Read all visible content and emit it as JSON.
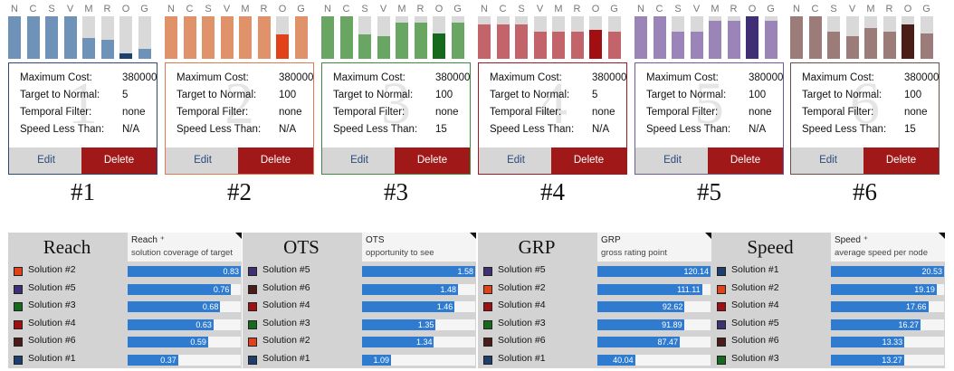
{
  "dimension_letters": [
    "N",
    "C",
    "S",
    "V",
    "M",
    "R",
    "O",
    "G"
  ],
  "field_labels": {
    "max_cost": "Maximum Cost:",
    "target_normal": "Target to Normal:",
    "temporal": "Temporal Filter:",
    "speed": "Speed Less Than:"
  },
  "buttons": {
    "edit": "Edit",
    "delete": "Delete"
  },
  "solutions": [
    {
      "id": "1",
      "label": "#1",
      "max_cost": "380000",
      "target_normal": "5",
      "temporal": "none",
      "speed": "N/A",
      "color": "#6f93b8",
      "dark": "#1d3f6d",
      "border": "#2b4a7a",
      "levels": [
        1,
        1,
        1,
        1,
        0.5,
        0.45,
        0.13,
        0.23
      ],
      "highlight": 6
    },
    {
      "id": "2",
      "label": "#2",
      "max_cost": "380000",
      "target_normal": "100",
      "temporal": "none",
      "speed": "N/A",
      "color": "#e0926b",
      "dark": "#e2421a",
      "border": "#e07a4e",
      "levels": [
        1,
        1,
        1,
        1,
        1,
        1,
        0.57,
        1
      ],
      "highlight": 6
    },
    {
      "id": "3",
      "label": "#3",
      "max_cost": "380000",
      "target_normal": "100",
      "temporal": "none",
      "speed": "15",
      "color": "#6aa663",
      "dark": "#166a1e",
      "border": "#3d8a3a",
      "levels": [
        1,
        1,
        0.58,
        0.54,
        0.86,
        0.86,
        0.6,
        0.86
      ],
      "highlight": 6
    },
    {
      "id": "4",
      "label": "#4",
      "max_cost": "380000",
      "target_normal": "5",
      "temporal": "none",
      "speed": "N/A",
      "color": "#c2646a",
      "dark": "#a10f13",
      "border": "#a1181e",
      "levels": [
        0.8,
        0.8,
        0.8,
        0.64,
        0.64,
        0.64,
        0.68,
        0.64
      ],
      "highlight": 6
    },
    {
      "id": "5",
      "label": "#5",
      "max_cost": "380000",
      "target_normal": "100",
      "temporal": "none",
      "speed": "N/A",
      "color": "#9b85b8",
      "dark": "#3f2f74",
      "border": "#6e5a9a",
      "levels": [
        1,
        1,
        0.64,
        0.64,
        0.9,
        0.9,
        1,
        0.9
      ],
      "highlight": 6
    },
    {
      "id": "6",
      "label": "#6",
      "max_cost": "380000",
      "target_normal": "100",
      "temporal": "none",
      "speed": "15",
      "color": "#9c7c78",
      "dark": "#4a1d18",
      "border": "#6e4d48",
      "levels": [
        1,
        1,
        0.64,
        0.53,
        0.73,
        0.64,
        0.8,
        0.6
      ],
      "highlight": 6
    }
  ],
  "panels": [
    {
      "title": "Reach",
      "metric": "Reach ⁺",
      "subtitle": "solution coverage of target",
      "rows": [
        {
          "name": "Solution #2",
          "value": "0.83",
          "color": "#e2421a"
        },
        {
          "name": "Solution #5",
          "value": "0.76",
          "color": "#3f2f74"
        },
        {
          "name": "Solution #3",
          "value": "0.68",
          "color": "#166a1e"
        },
        {
          "name": "Solution #4",
          "value": "0.63",
          "color": "#a10f13"
        },
        {
          "name": "Solution #6",
          "value": "0.59",
          "color": "#4a1d18"
        },
        {
          "name": "Solution #1",
          "value": "0.37",
          "color": "#1d3f6d"
        }
      ],
      "max": 0.83
    },
    {
      "title": "OTS",
      "metric": "OTS",
      "subtitle": "opportunity to see",
      "rows": [
        {
          "name": "Solution #5",
          "value": "1.58",
          "color": "#3f2f74"
        },
        {
          "name": "Solution #6",
          "value": "1.48",
          "color": "#4a1d18"
        },
        {
          "name": "Solution #4",
          "value": "1.46",
          "color": "#a10f13"
        },
        {
          "name": "Solution #3",
          "value": "1.35",
          "color": "#166a1e"
        },
        {
          "name": "Solution #2",
          "value": "1.34",
          "color": "#e2421a"
        },
        {
          "name": "Solution #1",
          "value": "1.09",
          "color": "#1d3f6d"
        }
      ],
      "max": 1.58,
      "min": 1.0
    },
    {
      "title": "GRP",
      "metric": "GRP",
      "subtitle": "gross rating point",
      "rows": [
        {
          "name": "Solution #5",
          "value": "120.14",
          "color": "#3f2f74"
        },
        {
          "name": "Solution #2",
          "value": "111.11",
          "color": "#e2421a"
        },
        {
          "name": "Solution #4",
          "value": "92.62",
          "color": "#a10f13"
        },
        {
          "name": "Solution #3",
          "value": "91.89",
          "color": "#166a1e"
        },
        {
          "name": "Solution #6",
          "value": "87.47",
          "color": "#4a1d18"
        },
        {
          "name": "Solution #1",
          "value": "40.04",
          "color": "#1d3f6d"
        }
      ],
      "max": 120.14
    },
    {
      "title": "Speed",
      "metric": "Speed ⁺",
      "subtitle": "average speed per node",
      "rows": [
        {
          "name": "Solution #1",
          "value": "20.53",
          "color": "#1d3f6d"
        },
        {
          "name": "Solution #2",
          "value": "19.19",
          "color": "#e2421a"
        },
        {
          "name": "Solution #4",
          "value": "17.66",
          "color": "#a10f13"
        },
        {
          "name": "Solution #5",
          "value": "16.27",
          "color": "#3f2f74"
        },
        {
          "name": "Solution #6",
          "value": "13.33",
          "color": "#4a1d18"
        },
        {
          "name": "Solution #3",
          "value": "13.27",
          "color": "#166a1e"
        }
      ],
      "max": 20.53
    }
  ]
}
